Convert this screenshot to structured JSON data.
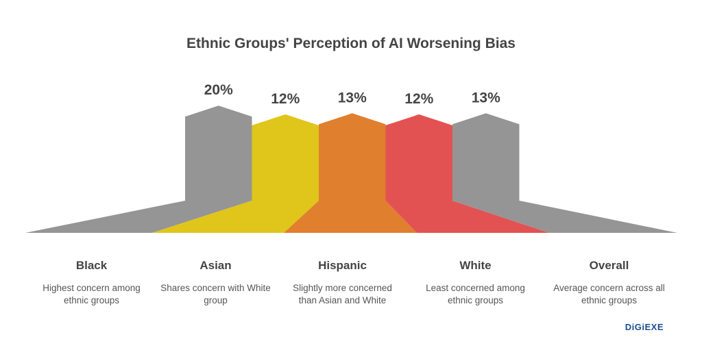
{
  "chart_data": {
    "type": "bar",
    "title": "Ethnic Groups' Perception of AI Worsening Bias",
    "categories": [
      "Black",
      "Asian",
      "Hispanic",
      "White",
      "Overall"
    ],
    "values": [
      20,
      12,
      13,
      12,
      13
    ],
    "value_labels": [
      "20%",
      "12%",
      "13%",
      "12%",
      "13%"
    ],
    "descriptions": [
      "Highest concern among ethnic groups",
      "Shares concern with White group",
      "Slightly more concerned than Asian and White",
      "Least concerned among ethnic groups",
      "Average concern across all ethnic groups"
    ],
    "colors": [
      "#959595",
      "#e0c51a",
      "#e07f2e",
      "#e35252",
      "#959595"
    ],
    "unit": "%"
  },
  "brand": "DiGiEXE"
}
